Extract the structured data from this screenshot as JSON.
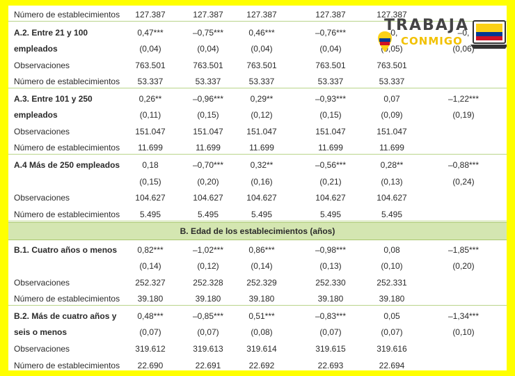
{
  "rows": [
    {
      "label": "Número de establecimientos",
      "bold": false,
      "values": [
        "127.387",
        "127.387",
        "127.387",
        "127.387",
        "127.387",
        ""
      ]
    },
    {
      "label": "A.2. Entre 21 y 100",
      "bold": true,
      "values": [
        "0,47***",
        "–0,75***",
        "0,46***",
        "–0,76***",
        "–0,",
        "–0,"
      ]
    },
    {
      "label": "empleados",
      "bold": true,
      "values": [
        "(0,04)",
        "(0,04)",
        "(0,04)",
        "(0,04)",
        "(0,05)",
        "(0,06)"
      ]
    },
    {
      "label": "Observaciones",
      "bold": false,
      "values": [
        "763.501",
        "763.501",
        "763.501",
        "763.501",
        "763.501",
        ""
      ]
    },
    {
      "label": "Número de establecimientos",
      "bold": false,
      "values": [
        "53.337",
        "53.337",
        "53.337",
        "53.337",
        "53.337",
        ""
      ]
    },
    {
      "label": "A.3. Entre 101 y 250",
      "bold": true,
      "values": [
        "0,26**",
        "–0,96***",
        "0,29**",
        "–0,93***",
        "0,07",
        "–1,22***"
      ]
    },
    {
      "label": "empleados",
      "bold": true,
      "values": [
        "(0,11)",
        "(0,15)",
        "(0,12)",
        "(0,15)",
        "(0,09)",
        "(0,19)"
      ]
    },
    {
      "label": "Observaciones",
      "bold": false,
      "values": [
        "151.047",
        "151.047",
        "151.047",
        "151.047",
        "151.047",
        ""
      ]
    },
    {
      "label": "Número de establecimientos",
      "bold": false,
      "values": [
        "11.699",
        "11.699",
        "11.699",
        "11.699",
        "11.699",
        ""
      ]
    },
    {
      "label": "A.4 Más de 250 empleados",
      "bold": true,
      "values": [
        "0,18",
        "–0,70***",
        "0,32**",
        "–0,56***",
        "0,28**",
        "–0,88***"
      ]
    },
    {
      "label": "",
      "bold": false,
      "values": [
        "(0,15)",
        "(0,20)",
        "(0,16)",
        "(0,21)",
        "(0,13)",
        "(0,24)"
      ]
    },
    {
      "label": "Observaciones",
      "bold": false,
      "values": [
        "104.627",
        "104.627",
        "104.627",
        "104.627",
        "104.627",
        ""
      ]
    },
    {
      "label": "Número de establecimientos",
      "bold": false,
      "values": [
        "5.495",
        "5.495",
        "5.495",
        "5.495",
        "5.495",
        ""
      ]
    },
    {
      "label": "B.1. Cuatro años o menos",
      "bold": true,
      "values": [
        "0,82***",
        "–1,02***",
        "0,86***",
        "–0,98***",
        "0,08",
        "–1,85***"
      ]
    },
    {
      "label": "",
      "bold": false,
      "values": [
        "(0,14)",
        "(0,12)",
        "(0,14)",
        "(0,13)",
        "(0,10)",
        "(0,20)"
      ]
    },
    {
      "label": "Observaciones",
      "bold": false,
      "values": [
        "252.327",
        "252.328",
        "252.329",
        "252.330",
        "252.331",
        ""
      ]
    },
    {
      "label": "Número de establecimientos",
      "bold": false,
      "values": [
        "39.180",
        "39.180",
        "39.180",
        "39.180",
        "39.180",
        ""
      ]
    },
    {
      "label": "B.2. Más de cuatro años y",
      "bold": true,
      "values": [
        "0,48***",
        "–0,85***",
        "0,51***",
        "–0,83***",
        "0,05",
        "–1,34***"
      ]
    },
    {
      "label": "seis o menos",
      "bold": true,
      "values": [
        "(0,07)",
        "(0,07)",
        "(0,08)",
        "(0,07)",
        "(0,07)",
        "(0,10)"
      ]
    },
    {
      "label": "Observaciones",
      "bold": false,
      "values": [
        "319.612",
        "319.613",
        "319.614",
        "319.615",
        "319.616",
        ""
      ]
    },
    {
      "label": "Número de establecimientos",
      "bold": false,
      "values": [
        "22.690",
        "22.691",
        "22.692",
        "22.693",
        "22.694",
        ""
      ]
    }
  ],
  "section_band": "B. Edad de los establecimientos (años)",
  "logo": {
    "line1": "TRABAJA",
    "line2": "CONMIGO",
    "accent": "#f2c100",
    "frame_color": "#ffff00"
  }
}
